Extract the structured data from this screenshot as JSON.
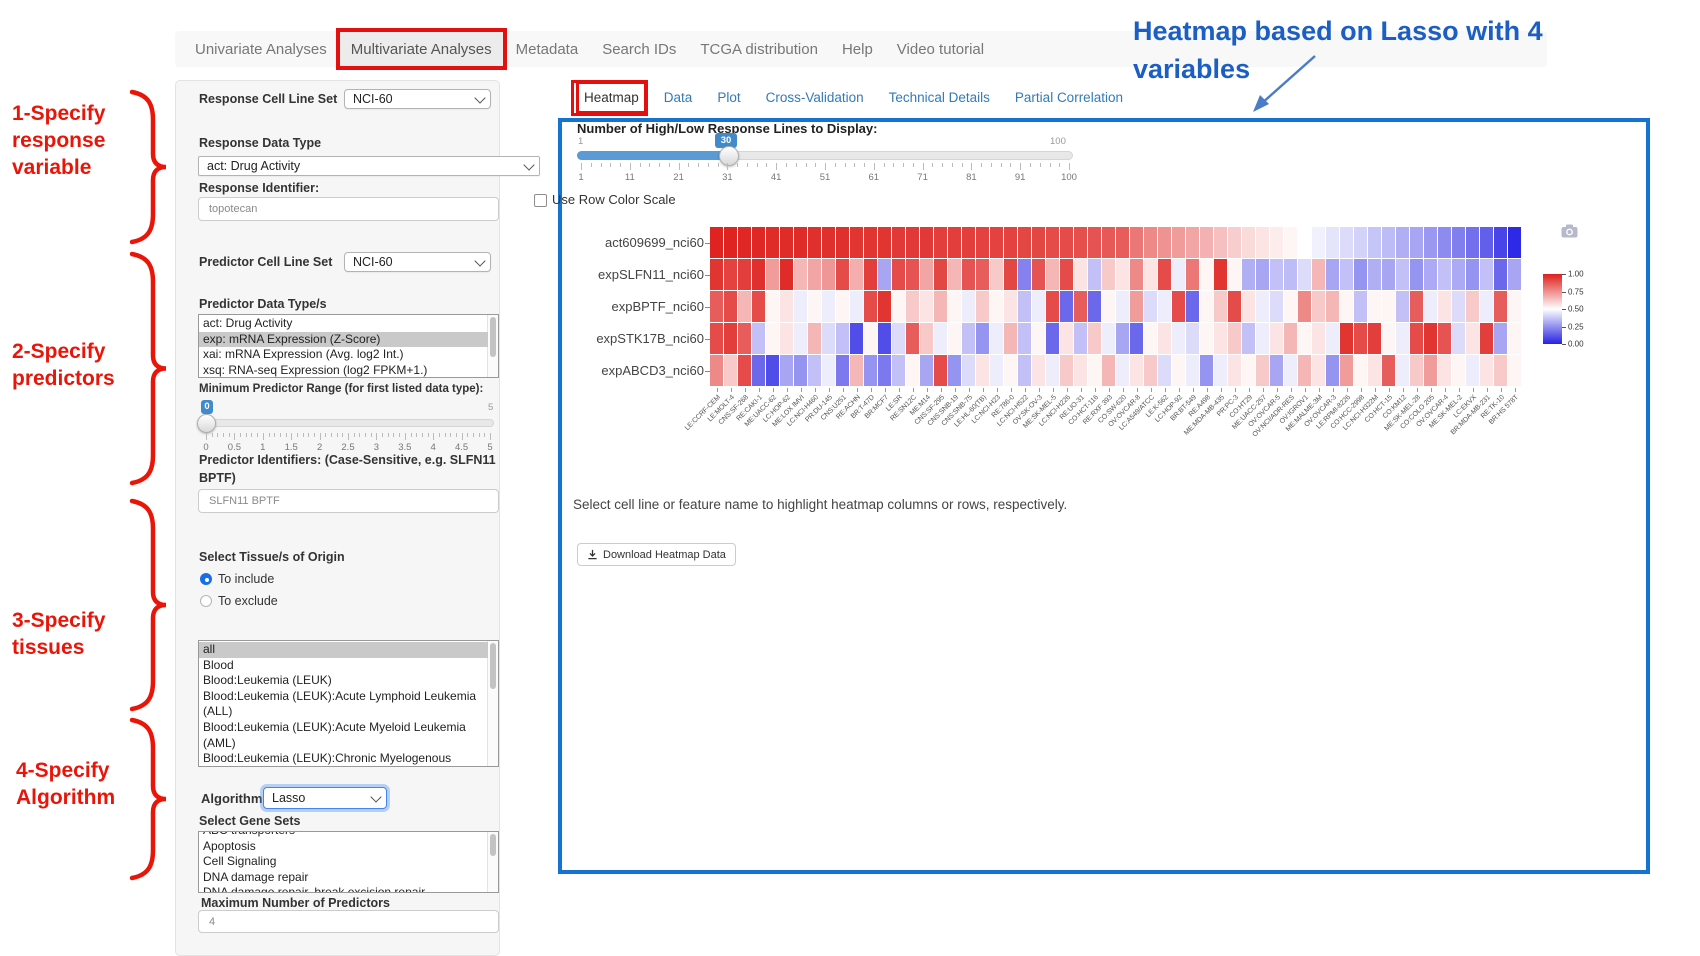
{
  "navbar": {
    "items": [
      "Univariate Analyses",
      "Multivariate Analyses",
      "Metadata",
      "Search IDs",
      "TCGA distribution",
      "Help",
      "Video tutorial"
    ],
    "active_index": 1
  },
  "annotations": {
    "color": "#ea1509",
    "steps": [
      {
        "lines": [
          "1-Specify",
          "response",
          "variable"
        ]
      },
      {
        "lines": [
          "2-Specify",
          "predictors"
        ]
      },
      {
        "lines": [
          "3-Specify",
          "tissues"
        ]
      },
      {
        "lines": [
          "4-Specify",
          "Algorithm"
        ]
      }
    ],
    "callout": {
      "color": "#1b5ec4",
      "text_lines": [
        "Heatmap based on Lasso with 4",
        "variables"
      ]
    }
  },
  "sidebar": {
    "response_cell_line_set": {
      "label": "Response Cell Line Set",
      "value": "NCI-60"
    },
    "response_data_type": {
      "label": "Response Data Type",
      "value": "act: Drug Activity"
    },
    "response_identifier": {
      "label": "Response Identifier:",
      "value": "topotecan"
    },
    "predictor_cell_line_set": {
      "label": "Predictor Cell Line Set",
      "value": "NCI-60"
    },
    "predictor_data_types": {
      "label": "Predictor Data Type/s",
      "options": [
        "act: Drug Activity",
        "exp: mRNA Expression (Z-Score)",
        "xai: mRNA Expression (Avg. log2 Int.)",
        "xsq: RNA-seq Expression (log2 FPKM+1.)"
      ],
      "selected_index": 1
    },
    "min_predictor_range": {
      "label": "Minimum Predictor Range (for first listed data type):",
      "value": "0",
      "min": "0",
      "max": "5",
      "ticks": [
        "0",
        "0.5",
        "1",
        "1.5",
        "2",
        "2.5",
        "3",
        "3.5",
        "4",
        "4.5",
        "5"
      ]
    },
    "predictor_identifiers": {
      "label": "Predictor Identifiers: (Case-Sensitive, e.g. SLFN11 BPTF)",
      "value": "SLFN11 BPTF"
    },
    "tissues": {
      "label": "Select Tissue/s of Origin",
      "radios": [
        {
          "label": "To include",
          "checked": true
        },
        {
          "label": "To exclude",
          "checked": false
        }
      ],
      "options": [
        "all",
        "Blood",
        "Blood:Leukemia (LEUK)",
        "Blood:Leukemia (LEUK):Acute Lymphoid Leukemia (ALL)",
        "Blood:Leukemia (LEUK):Acute Myeloid Leukemia (AML)",
        "Blood:Leukemia (LEUK):Chronic Myelogenous Leukemia (CML)"
      ],
      "selected_index": 0
    },
    "algorithm": {
      "label": "Algorithm",
      "value": "Lasso"
    },
    "gene_sets": {
      "label": "Select Gene Sets",
      "clipped_option": "ABC transporters",
      "options": [
        "Apoptosis",
        "Cell Signaling",
        "DNA damage repair",
        "DNA damage repair, break excision repair"
      ]
    },
    "max_predictors": {
      "label": "Maximum Number of Predictors",
      "value": "4"
    }
  },
  "panel": {
    "border_color": "#1574cf",
    "tabs": [
      "Heatmap",
      "Data",
      "Plot",
      "Cross-Validation",
      "Technical Details",
      "Partial Correlation"
    ],
    "active_tab_index": 0,
    "lines_slider": {
      "label": "Number of High/Low Response Lines to Display:",
      "value": "30",
      "min": "1",
      "max": "100",
      "ticks": [
        "1",
        "11",
        "21",
        "31",
        "41",
        "51",
        "61",
        "71",
        "81",
        "91",
        "100"
      ]
    },
    "row_scale_label": "Use Row Color Scale",
    "note": "Select cell line or feature name to highlight heatmap columns or rows, respectively.",
    "download_label": "Download Heatmap Data"
  },
  "chart_data": {
    "type": "heatmap",
    "title": "",
    "rows": [
      "act609699_nci60",
      "expSLFN11_nci60",
      "expBPTF_nci60",
      "expSTK17B_nci60",
      "expABCD3_nci60"
    ],
    "columns": [
      "LE:CCRF-CEM",
      "LE:MOLT-4",
      "CNS:SF-268",
      "RE:CAKI-1",
      "ME:UACC-62",
      "LC:HOP-62",
      "ME:LOX IMVI",
      "LC:NCI-H460",
      "PR:DU-145",
      "CNS:U251",
      "RE:ACHN",
      "BR:T-47D",
      "BR:MCF7",
      "LE:SR",
      "RE:SN12C",
      "ME:M14",
      "CNS:SF-295",
      "CNS:SNB-19",
      "CNS:SNB-75",
      "LE:HL-60(TB)",
      "LC:NCI-H23",
      "RE:786-0",
      "LC:NCI-H522",
      "OV:SK-OV-3",
      "ME:SK-MEL-5",
      "LC:NCI-H226",
      "RE:UO-31",
      "CO:HCT-116",
      "RE:RXF 393",
      "CO:SW-620",
      "OV:OVCAR-8",
      "LC:A549/ATCC",
      "LE:K-562",
      "LC:HOP-92",
      "BR:BT-549",
      "RE:A498",
      "ME:MDA-MB-435",
      "PR:PC-3",
      "CO:HT29",
      "ME:UACC-257",
      "OV:OVCAR-5",
      "OV:NCI/ADR-RES",
      "OV:IGROV1",
      "ME:MALME-3M",
      "OV:OVCAR-3",
      "LE:RPMI-8226",
      "CO:HCC-2998",
      "LC:NCI-H322M",
      "CO:HCT-15",
      "CO:KM12",
      "ME:SK-MEL-28",
      "CO:COLO 205",
      "OV:OVCAR-4",
      "ME:SK-MEL-2",
      "LC:EKVX",
      "BR:MDA-MB-231",
      "RE:TK-10",
      "BR:HS 578T"
    ],
    "values": [
      [
        0.99,
        0.99,
        0.98,
        0.98,
        0.97,
        0.97,
        0.97,
        0.96,
        0.96,
        0.96,
        0.95,
        0.95,
        0.95,
        0.94,
        0.94,
        0.94,
        0.93,
        0.93,
        0.93,
        0.92,
        0.92,
        0.92,
        0.91,
        0.91,
        0.9,
        0.9,
        0.89,
        0.88,
        0.87,
        0.86,
        0.8,
        0.76,
        0.74,
        0.72,
        0.7,
        0.67,
        0.64,
        0.61,
        0.58,
        0.56,
        0.54,
        0.52,
        0.5,
        0.47,
        0.44,
        0.42,
        0.4,
        0.37,
        0.35,
        0.32,
        0.3,
        0.27,
        0.24,
        0.21,
        0.18,
        0.14,
        0.08,
        0.02
      ],
      [
        0.95,
        0.92,
        0.93,
        0.96,
        0.72,
        0.97,
        0.66,
        0.7,
        0.73,
        0.9,
        0.68,
        0.93,
        0.3,
        0.9,
        0.88,
        0.7,
        0.91,
        0.66,
        0.88,
        0.86,
        0.62,
        0.91,
        0.22,
        0.88,
        0.66,
        0.9,
        0.56,
        0.36,
        0.62,
        0.56,
        0.76,
        0.56,
        0.9,
        0.46,
        0.8,
        0.52,
        0.95,
        0.52,
        0.32,
        0.3,
        0.36,
        0.35,
        0.42,
        0.66,
        0.3,
        0.36,
        0.26,
        0.32,
        0.3,
        0.36,
        0.26,
        0.31,
        0.36,
        0.31,
        0.26,
        0.36,
        0.16,
        0.3
      ],
      [
        0.86,
        0.9,
        0.66,
        0.9,
        0.52,
        0.56,
        0.46,
        0.52,
        0.46,
        0.52,
        0.46,
        0.9,
        0.95,
        0.52,
        0.62,
        0.56,
        0.66,
        0.52,
        0.46,
        0.62,
        0.52,
        0.56,
        0.36,
        0.46,
        0.9,
        0.16,
        0.86,
        0.16,
        0.52,
        0.46,
        0.72,
        0.42,
        0.46,
        0.9,
        0.16,
        0.52,
        0.62,
        0.9,
        0.56,
        0.46,
        0.42,
        0.52,
        0.76,
        0.62,
        0.66,
        0.52,
        0.36,
        0.52,
        0.52,
        0.36,
        0.86,
        0.46,
        0.56,
        0.42,
        0.62,
        0.46,
        0.86,
        0.52
      ],
      [
        0.9,
        0.93,
        0.86,
        0.36,
        0.52,
        0.56,
        0.46,
        0.66,
        0.42,
        0.36,
        0.1,
        0.52,
        0.1,
        0.42,
        0.86,
        0.62,
        0.46,
        0.52,
        0.36,
        0.26,
        0.46,
        0.66,
        0.36,
        0.52,
        0.16,
        0.56,
        0.36,
        0.62,
        0.46,
        0.3,
        0.16,
        0.52,
        0.56,
        0.46,
        0.42,
        0.52,
        0.56,
        0.62,
        0.36,
        0.46,
        0.56,
        0.66,
        0.52,
        0.56,
        0.46,
        0.95,
        0.9,
        0.93,
        0.52,
        0.46,
        0.9,
        0.95,
        0.88,
        0.42,
        0.56,
        0.93,
        0.3,
        0.52
      ],
      [
        0.76,
        0.62,
        0.9,
        0.16,
        0.1,
        0.3,
        0.26,
        0.36,
        0.46,
        0.2,
        0.66,
        0.26,
        0.2,
        0.36,
        0.52,
        0.3,
        0.9,
        0.26,
        0.42,
        0.56,
        0.46,
        0.52,
        0.36,
        0.56,
        0.46,
        0.62,
        0.56,
        0.52,
        0.66,
        0.46,
        0.56,
        0.62,
        0.42,
        0.52,
        0.46,
        0.26,
        0.46,
        0.56,
        0.52,
        0.62,
        0.3,
        0.46,
        0.66,
        0.56,
        0.26,
        0.72,
        0.52,
        0.56,
        0.86,
        0.46,
        0.62,
        0.72,
        0.56,
        0.52,
        0.46,
        0.56,
        0.62,
        0.52
      ]
    ],
    "value_range": [
      0,
      1
    ],
    "legend_ticks": [
      "1.00",
      "0.75",
      "0.50",
      "0.25",
      "0.00"
    ],
    "max_color": "#de1f1c",
    "mid_color": "#ffffff",
    "min_color": "#2621e3",
    "legend_position": "right",
    "grid": false
  }
}
